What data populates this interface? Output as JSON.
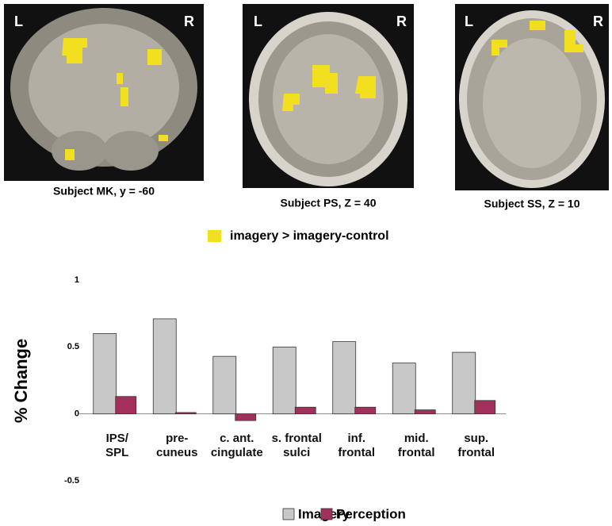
{
  "panels": [
    {
      "left": "L",
      "right": "R",
      "caption": "Subject MK, y = -60"
    },
    {
      "left": "L",
      "right": "R",
      "caption": "Subject PS, Z = 40"
    },
    {
      "left": "L",
      "right": "R",
      "caption": "Subject SS, Z = 10"
    }
  ],
  "panel_legend": "imagery > imagery-control",
  "chart_data": {
    "type": "bar",
    "y_label": "% Change",
    "categories": [
      "IPS/\nSPL",
      "pre-\ncuneus",
      "c. ant.\ncingulate",
      "s. frontal\nsulci",
      "inf.\nfrontal",
      "mid.\nfrontal",
      "sup.\nfrontal"
    ],
    "series": [
      {
        "name": "Imagery",
        "color": "#c8c8c8",
        "values": [
          0.6,
          0.71,
          0.43,
          0.5,
          0.54,
          0.38,
          0.46
        ]
      },
      {
        "name": "Perception",
        "color": "#a3305c",
        "values": [
          0.13,
          0.01,
          -0.05,
          0.05,
          0.05,
          0.03,
          0.1
        ]
      }
    ],
    "ylim": [
      -0.5,
      1
    ],
    "yticks": [
      -0.5,
      0,
      0.5,
      1
    ],
    "grid": false,
    "legend": "bottom"
  }
}
